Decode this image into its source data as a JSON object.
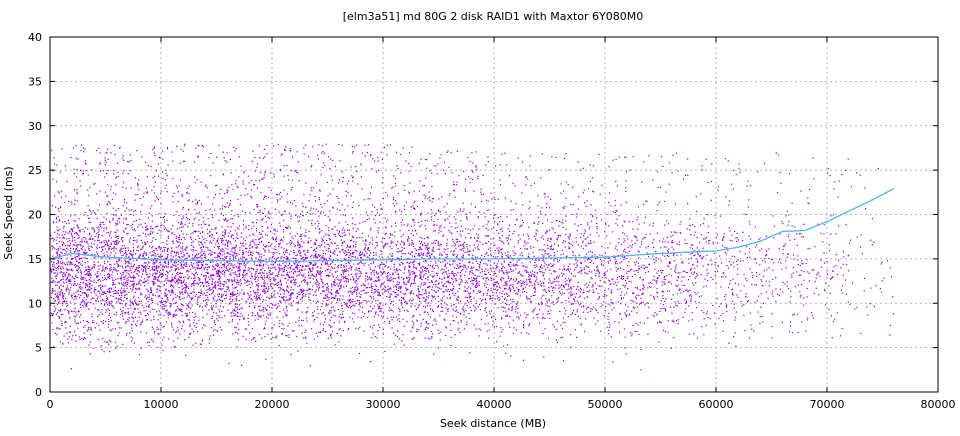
{
  "chart_data": {
    "type": "scatter",
    "title": "[elm3a51] md 80G 2 disk RAID1 with Maxtor 6Y080M0",
    "xlabel": "Seek distance (MB)",
    "ylabel": "Seek Speed (ms)",
    "xlim": [
      0,
      80000
    ],
    "ylim": [
      0,
      40
    ],
    "xticks": [
      0,
      10000,
      20000,
      30000,
      40000,
      50000,
      60000,
      70000,
      80000
    ],
    "yticks": [
      0,
      5,
      10,
      15,
      20,
      25,
      30,
      35,
      40
    ],
    "grid": true,
    "colors": {
      "points": "#9400d3",
      "trend": "#56b4e9"
    },
    "scatter_envelope": {
      "description_values": {
        "x_range": [
          0,
          76000
        ],
        "density_peak_y_range": [
          8,
          20
        ],
        "upper_spread_y": 30,
        "lower_spread_y": 5
      },
      "profile": [
        {
          "x": 0,
          "y_low": 5,
          "y_high": 28,
          "density": 1.0
        },
        {
          "x": 10000,
          "y_low": 5,
          "y_high": 28,
          "density": 1.0
        },
        {
          "x": 20000,
          "y_low": 6,
          "y_high": 28,
          "density": 0.9
        },
        {
          "x": 30000,
          "y_low": 6,
          "y_high": 28,
          "density": 0.8
        },
        {
          "x": 40000,
          "y_low": 6,
          "y_high": 27,
          "density": 0.65
        },
        {
          "x": 50000,
          "y_low": 6,
          "y_high": 27,
          "density": 0.45
        },
        {
          "x": 60000,
          "y_low": 6,
          "y_high": 27,
          "density": 0.25
        },
        {
          "x": 70000,
          "y_low": 7,
          "y_high": 27,
          "density": 0.12
        },
        {
          "x": 76000,
          "y_low": 8,
          "y_high": 26,
          "density": 0.05
        }
      ]
    },
    "series": [
      {
        "values": [
          [
            0,
            15.0
          ],
          [
            2000,
            15.6
          ],
          [
            5000,
            15.2
          ],
          [
            10000,
            14.9
          ],
          [
            15000,
            14.8
          ],
          [
            20000,
            14.7
          ],
          [
            25000,
            14.8
          ],
          [
            30000,
            14.9
          ],
          [
            35000,
            15.0
          ],
          [
            40000,
            15.0
          ],
          [
            45000,
            15.1
          ],
          [
            50000,
            15.2
          ],
          [
            55000,
            15.6
          ],
          [
            58000,
            15.8
          ],
          [
            60000,
            15.9
          ],
          [
            62000,
            16.3
          ],
          [
            64000,
            17.0
          ],
          [
            66000,
            18.1
          ],
          [
            68000,
            18.2
          ],
          [
            70000,
            19.2
          ],
          [
            72000,
            20.4
          ],
          [
            74000,
            21.6
          ],
          [
            76000,
            22.9
          ]
        ]
      }
    ]
  }
}
